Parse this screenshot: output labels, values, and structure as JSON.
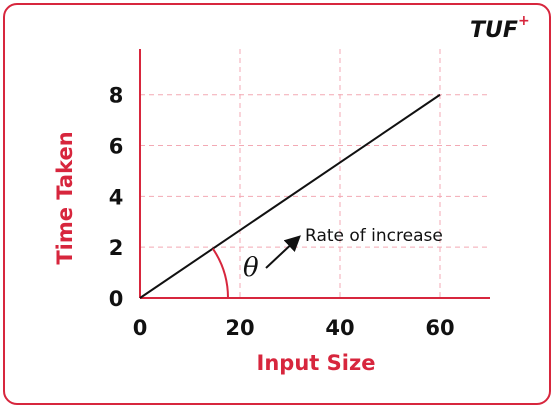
{
  "logo": {
    "text": "TUF",
    "superscript": "+"
  },
  "chart_data": {
    "type": "line",
    "xlabel": "Input Size",
    "ylabel": "Time Taken",
    "x_ticks": [
      0,
      20,
      40,
      60
    ],
    "y_ticks": [
      0,
      2,
      4,
      6,
      8
    ],
    "xlim": [
      0,
      70
    ],
    "ylim": [
      0,
      9.8
    ],
    "grid": true,
    "series": [
      {
        "x": [
          0,
          60
        ],
        "y": [
          0,
          8
        ]
      }
    ],
    "annotations": {
      "angle_symbol": "θ",
      "label": "Rate of increase"
    }
  },
  "colors": {
    "accent": "#d7263d",
    "line": "#111111",
    "grid": "#f3a9b4"
  }
}
